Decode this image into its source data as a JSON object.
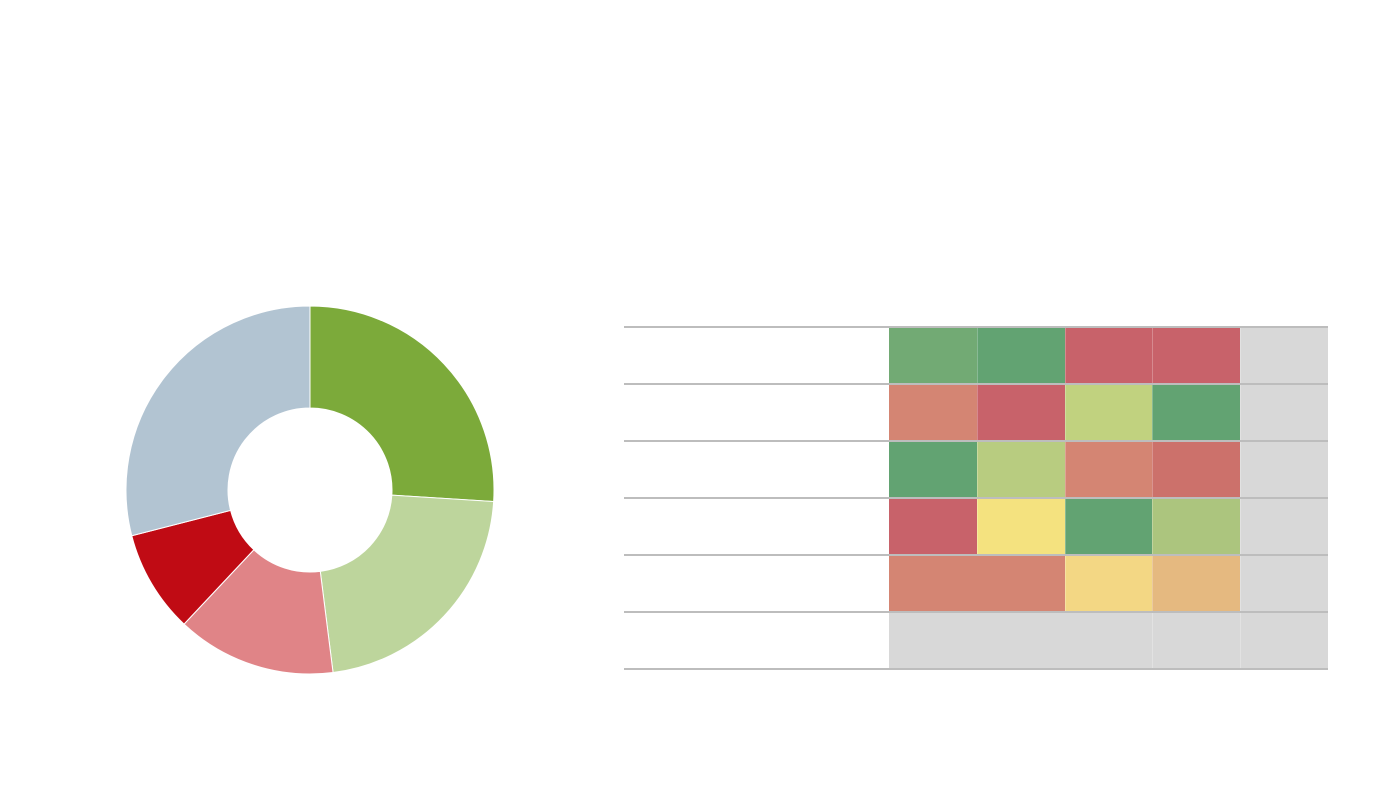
{
  "chart_data": [
    {
      "type": "pie",
      "style": "donut",
      "start": "top",
      "direction": "clockwise",
      "values": [
        26,
        22,
        14,
        9,
        29
      ],
      "colors": [
        "#7caa3a",
        "#bdd59c",
        "#e08487",
        "#c00b14",
        "#b2c4d2"
      ]
    },
    {
      "type": "heatmap",
      "rows": [
        [
          {
            "color": "#72aa74"
          },
          {
            "color": "#62a372"
          },
          {
            "color": "#c8626a"
          },
          {
            "color": "#c8626a"
          },
          {
            "color": "#d8d8d8"
          }
        ],
        [
          {
            "color": "#d48573"
          },
          {
            "color": "#c8626a"
          },
          {
            "color": "#c1d27f"
          },
          {
            "color": "#62a372"
          },
          {
            "color": "#d8d8d8"
          }
        ],
        [
          {
            "color": "#62a372"
          },
          {
            "color": "#b8cc80"
          },
          {
            "color": "#d48573"
          },
          {
            "color": "#cc716b"
          },
          {
            "color": "#d8d8d8"
          }
        ],
        [
          {
            "color": "#c8626a"
          },
          {
            "color": "#f4e27f"
          },
          {
            "color": "#62a372"
          },
          {
            "color": "#acc57e"
          },
          {
            "color": "#d8d8d8"
          }
        ],
        [
          {
            "color": "#d48573",
            "span": 2
          },
          {
            "color": "#f3d784"
          },
          {
            "color": "#e5b980"
          },
          {
            "color": "#d8d8d8"
          }
        ],
        [
          {
            "color": "#d8d8d8",
            "span": 3
          },
          {
            "color": "#d8d8d8"
          },
          {
            "color": "#d8d8d8"
          }
        ]
      ]
    }
  ]
}
